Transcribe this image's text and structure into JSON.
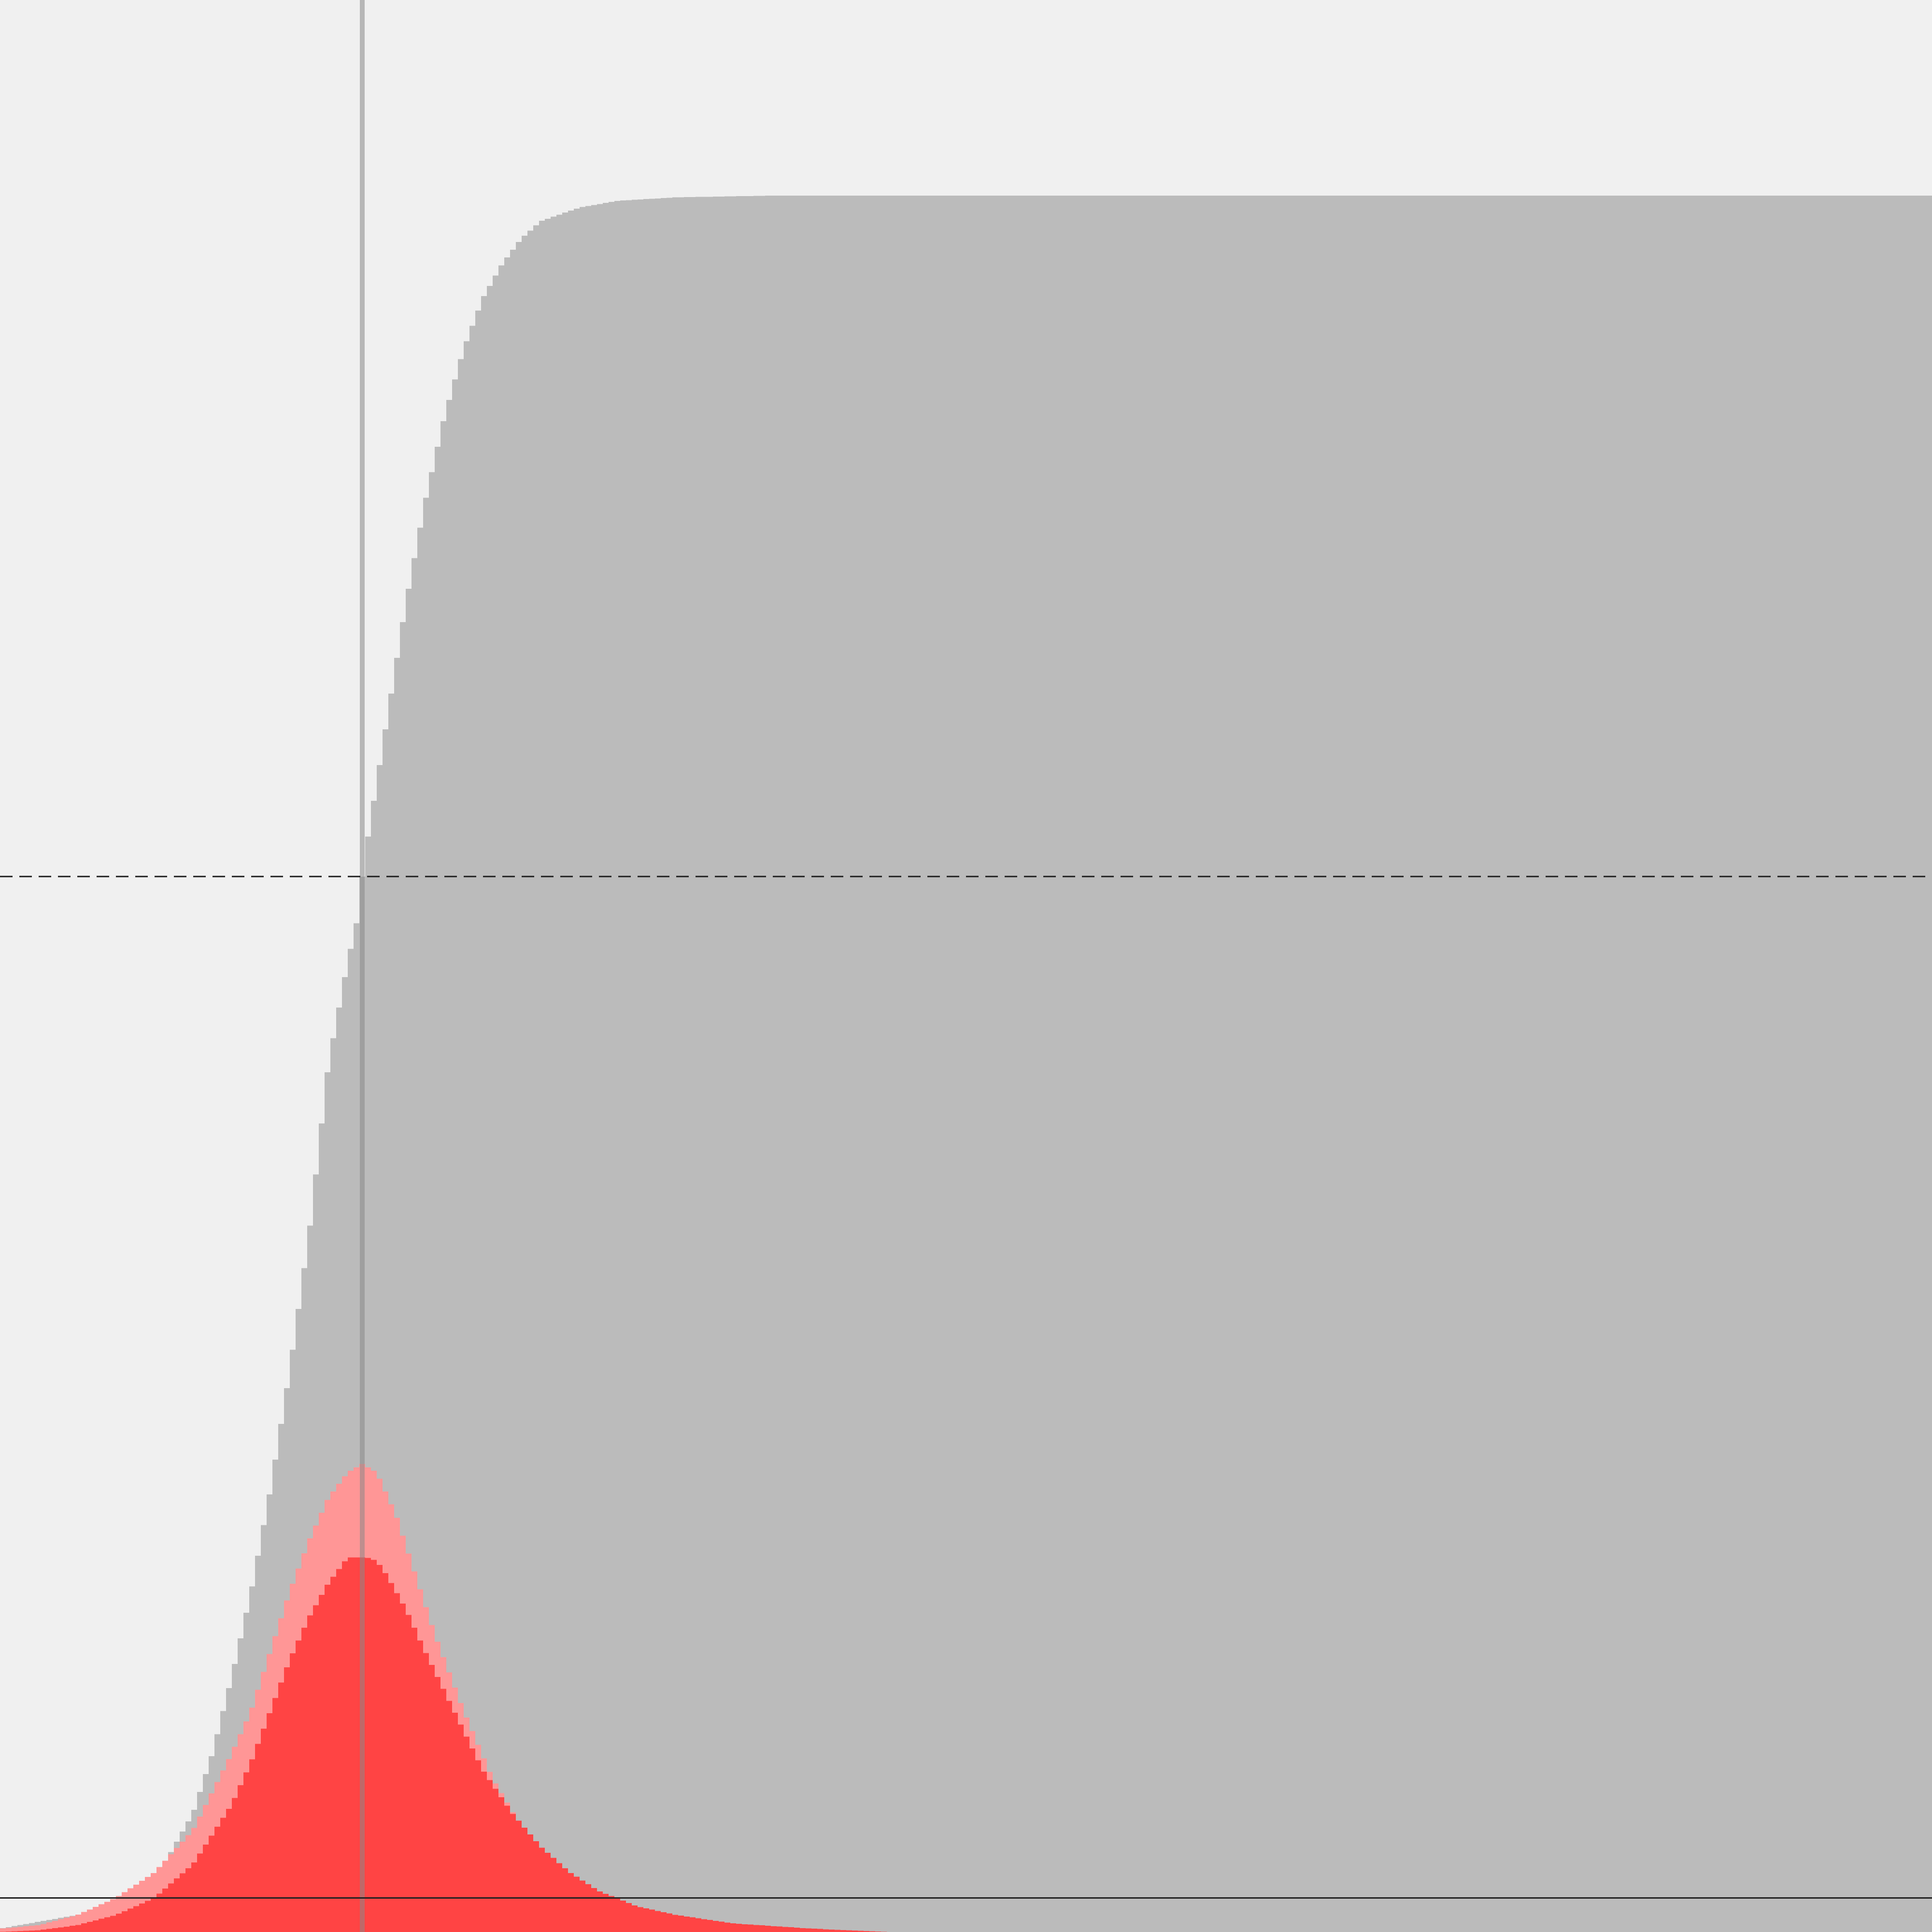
{
  "chart_data": {
    "type": "area",
    "title": "",
    "xlabel": "",
    "ylabel": "",
    "grid": false,
    "legend": "none",
    "xlim": [
      0,
      100
    ],
    "ylim": [
      -0.02,
      1
    ],
    "reference_lines": {
      "vertical_x": 18.75,
      "horizontal_dashed_y": 0.6,
      "horizontal_solid_y": 0
    },
    "series": [
      {
        "name": "",
        "kind": "cumulative",
        "color": "#bbbbbb",
        "x": [
          0,
          2,
          4,
          6,
          8,
          10,
          11,
          12,
          13,
          14,
          15,
          16,
          16.5,
          17,
          17.5,
          18,
          18.5,
          18.75,
          19,
          19.5,
          20,
          21,
          22,
          23,
          24,
          25,
          26,
          27,
          28,
          30,
          32,
          35,
          40,
          50,
          60,
          70,
          80,
          90,
          100
        ],
        "values": [
          -0.018,
          -0.014,
          -0.01,
          -0.003,
          0.01,
          0.05,
          0.085,
          0.13,
          0.18,
          0.24,
          0.31,
          0.39,
          0.44,
          0.49,
          0.52,
          0.55,
          0.575,
          0.6,
          0.62,
          0.655,
          0.69,
          0.76,
          0.82,
          0.87,
          0.91,
          0.94,
          0.96,
          0.975,
          0.985,
          0.993,
          0.997,
          0.999,
          1.0,
          1.0,
          1.0,
          1.0,
          1.0,
          1.0,
          1.0
        ]
      },
      {
        "name": "",
        "kind": "density",
        "color": "#ff9696",
        "x": [
          0,
          2,
          4,
          6,
          8,
          10,
          12,
          13,
          14,
          15,
          16,
          17,
          18,
          18.75,
          19.5,
          20.5,
          21.5,
          22.5,
          24,
          25.5,
          27,
          28.5,
          30,
          31.5,
          33,
          35,
          38,
          42,
          46,
          100
        ],
        "values": [
          -0.018,
          -0.016,
          -0.01,
          0.0,
          0.015,
          0.04,
          0.085,
          0.11,
          0.145,
          0.18,
          0.21,
          0.235,
          0.25,
          0.255,
          0.25,
          0.225,
          0.19,
          0.155,
          0.11,
          0.07,
          0.042,
          0.022,
          0.008,
          -0.002,
          -0.008,
          -0.013,
          -0.017,
          -0.019,
          -0.02,
          -0.02
        ]
      },
      {
        "name": "",
        "kind": "density",
        "color": "#ff4444",
        "x": [
          0,
          2,
          4,
          6,
          8,
          10,
          12,
          13,
          14,
          15,
          16,
          17,
          18,
          19,
          19.5,
          20,
          21,
          22,
          23.5,
          25,
          26.5,
          28,
          29.5,
          31,
          33,
          35,
          38,
          42,
          46,
          100
        ],
        "values": [
          -0.02,
          -0.019,
          -0.016,
          -0.01,
          0.0,
          0.02,
          0.055,
          0.08,
          0.11,
          0.14,
          0.165,
          0.185,
          0.2,
          0.2,
          0.198,
          0.19,
          0.17,
          0.145,
          0.11,
          0.075,
          0.05,
          0.03,
          0.015,
          0.004,
          -0.005,
          -0.01,
          -0.015,
          -0.018,
          -0.02,
          -0.02
        ]
      }
    ]
  },
  "colors": {
    "background": "#f0f0f0",
    "cumulative_fill": "#bbbbbb",
    "density_light": "#ff9696",
    "density_dark": "#ff4444",
    "vertical_line": "#888888",
    "reference_line": "#222222"
  }
}
